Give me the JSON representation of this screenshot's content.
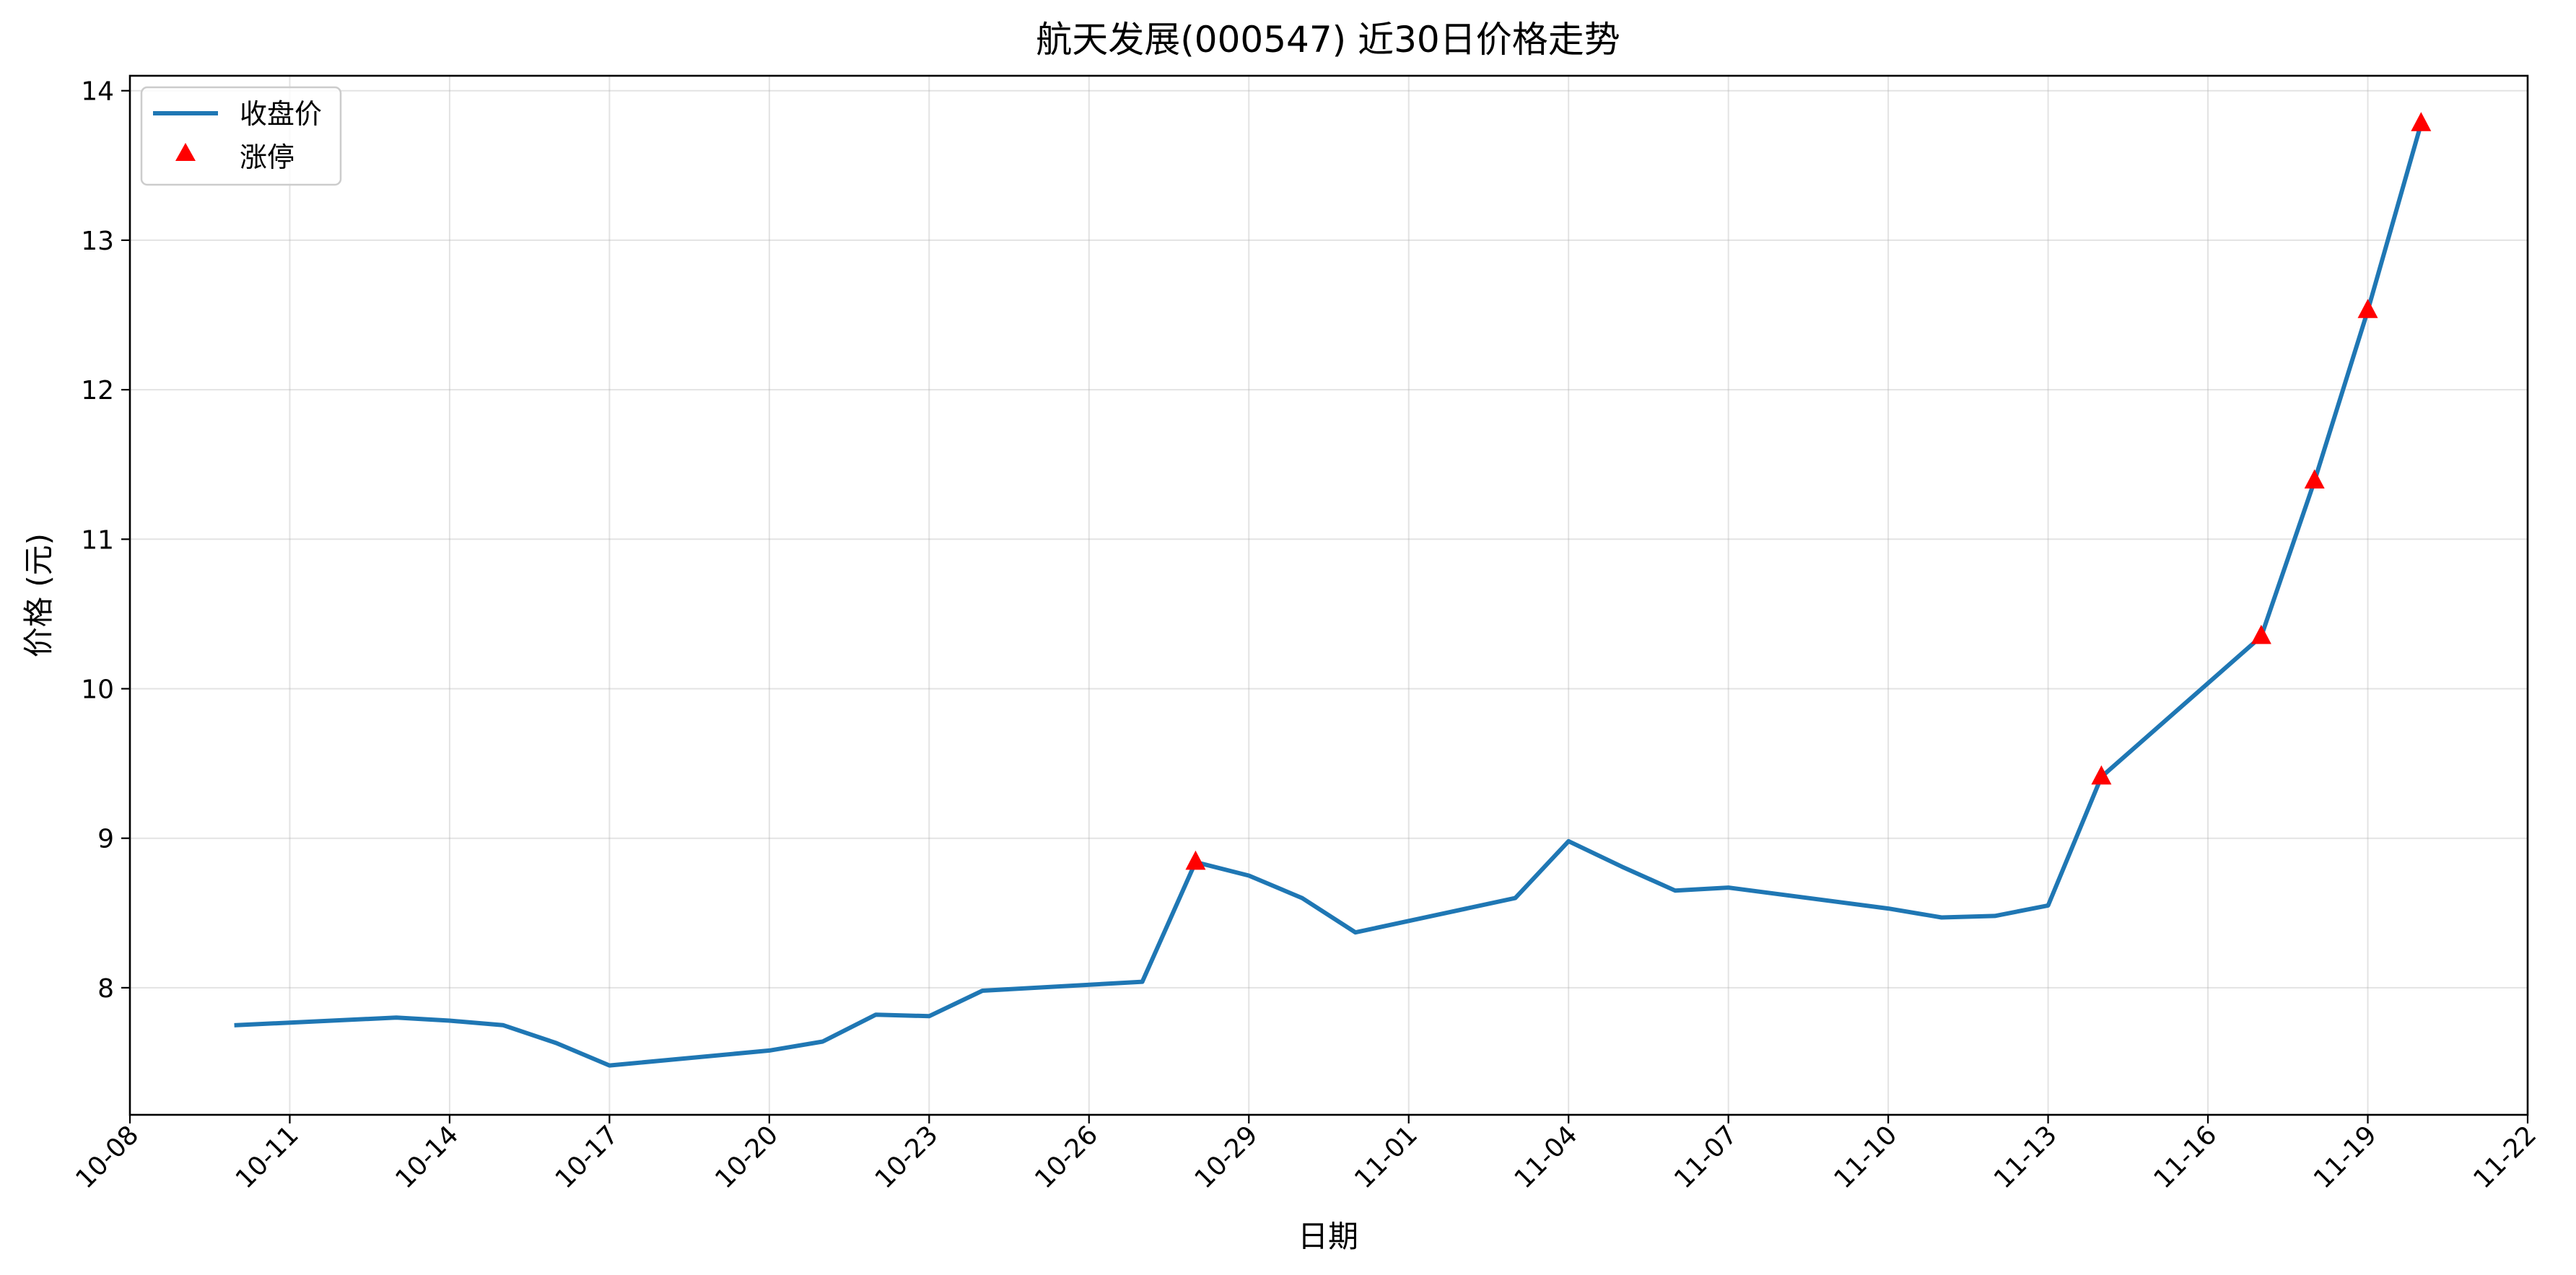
{
  "chart_data": {
    "type": "line",
    "title": "航天发展(000547) 近30日价格走势",
    "xlabel": "日期",
    "ylabel": "价格 (元)",
    "x_tick_labels": [
      "10-08",
      "10-11",
      "10-14",
      "10-17",
      "10-20",
      "10-23",
      "10-26",
      "10-29",
      "11-01",
      "11-04",
      "11-07",
      "11-10",
      "11-13",
      "11-16",
      "11-19",
      "11-22"
    ],
    "y_tick_labels": [
      "8",
      "9",
      "10",
      "11",
      "12",
      "13",
      "14"
    ],
    "ylim": [
      7.15,
      14.1
    ],
    "xlim": [
      "2025-10-08",
      "2025-11-22"
    ],
    "grid": true,
    "legend_position": "top-left",
    "series": [
      {
        "name": "收盘价",
        "type": "line",
        "color": "#1f77b4",
        "points": [
          {
            "x": "2025-10-10",
            "y": 7.75
          },
          {
            "x": "2025-10-13",
            "y": 7.8
          },
          {
            "x": "2025-10-14",
            "y": 7.78
          },
          {
            "x": "2025-10-15",
            "y": 7.75
          },
          {
            "x": "2025-10-16",
            "y": 7.63
          },
          {
            "x": "2025-10-17",
            "y": 7.48
          },
          {
            "x": "2025-10-20",
            "y": 7.58
          },
          {
            "x": "2025-10-21",
            "y": 7.64
          },
          {
            "x": "2025-10-22",
            "y": 7.82
          },
          {
            "x": "2025-10-23",
            "y": 7.81
          },
          {
            "x": "2025-10-24",
            "y": 7.98
          },
          {
            "x": "2025-10-27",
            "y": 8.04
          },
          {
            "x": "2025-10-28",
            "y": 8.84
          },
          {
            "x": "2025-10-29",
            "y": 8.75
          },
          {
            "x": "2025-10-30",
            "y": 8.6
          },
          {
            "x": "2025-10-31",
            "y": 8.37
          },
          {
            "x": "2025-11-03",
            "y": 8.6
          },
          {
            "x": "2025-11-04",
            "y": 8.98
          },
          {
            "x": "2025-11-05",
            "y": 8.81
          },
          {
            "x": "2025-11-06",
            "y": 8.65
          },
          {
            "x": "2025-11-07",
            "y": 8.67
          },
          {
            "x": "2025-11-10",
            "y": 8.53
          },
          {
            "x": "2025-11-11",
            "y": 8.47
          },
          {
            "x": "2025-11-12",
            "y": 8.48
          },
          {
            "x": "2025-11-13",
            "y": 8.55
          },
          {
            "x": "2025-11-14",
            "y": 9.41
          },
          {
            "x": "2025-11-17",
            "y": 10.35
          },
          {
            "x": "2025-11-18",
            "y": 11.39
          },
          {
            "x": "2025-11-19",
            "y": 12.53
          },
          {
            "x": "2025-11-20",
            "y": 13.78
          }
        ]
      },
      {
        "name": "涨停",
        "type": "scatter",
        "marker": "triangle",
        "color": "#ff0000",
        "points": [
          {
            "x": "2025-10-28",
            "y": 8.84
          },
          {
            "x": "2025-11-14",
            "y": 9.41
          },
          {
            "x": "2025-11-17",
            "y": 10.35
          },
          {
            "x": "2025-11-18",
            "y": 11.39
          },
          {
            "x": "2025-11-19",
            "y": 12.53
          },
          {
            "x": "2025-11-20",
            "y": 13.78
          }
        ]
      }
    ]
  }
}
